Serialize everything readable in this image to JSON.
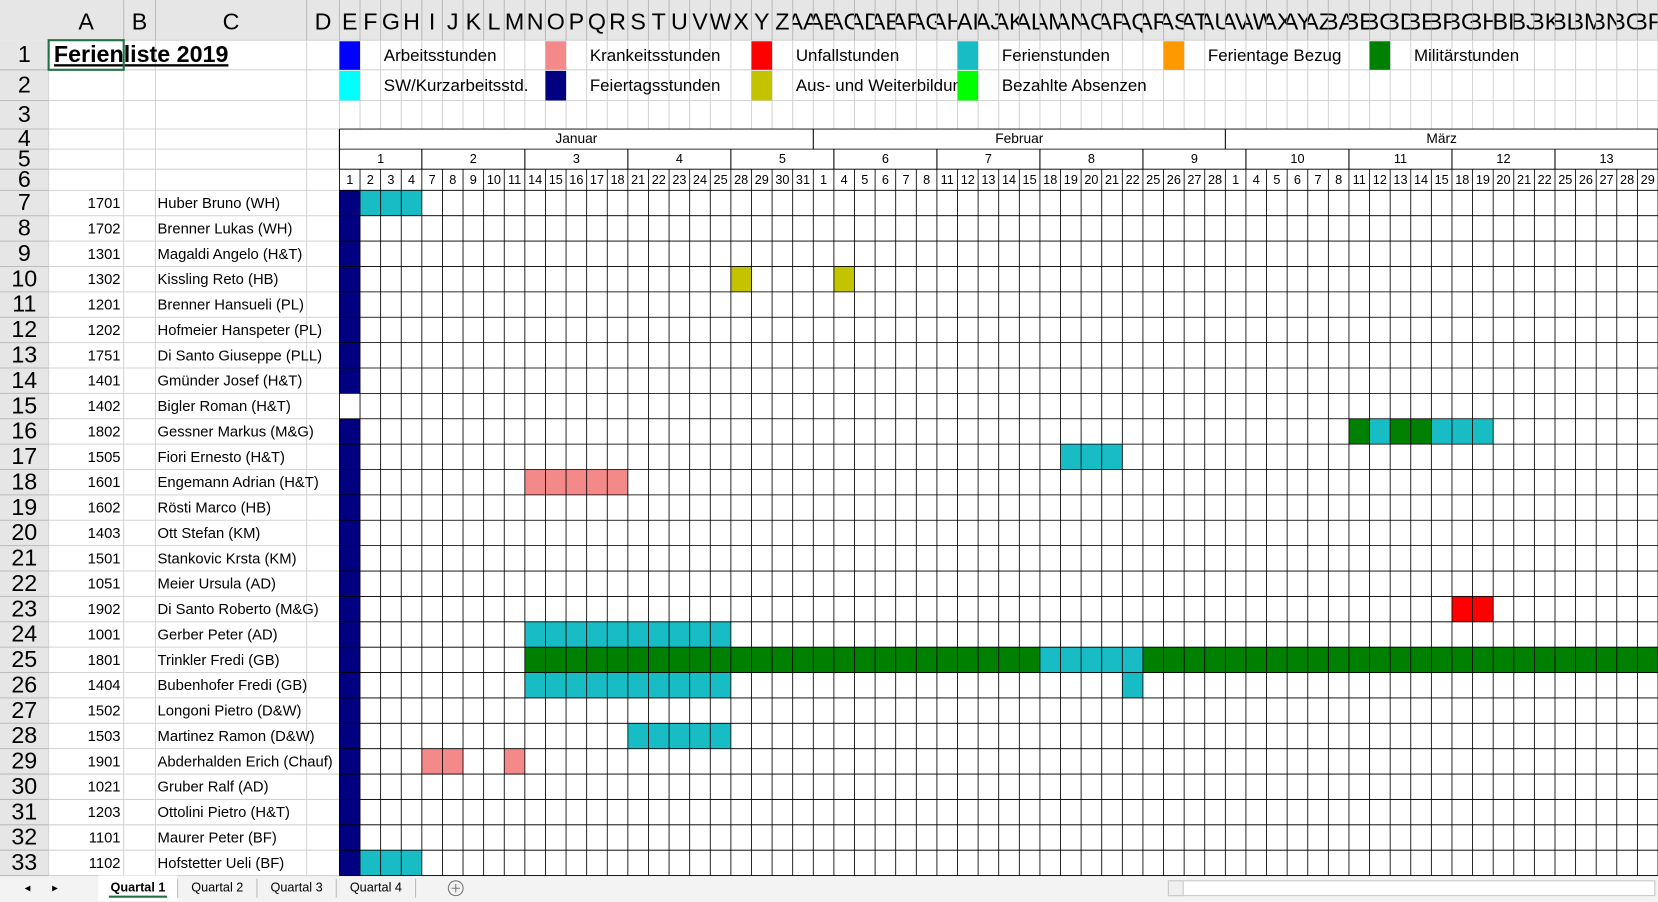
{
  "title": "Ferienliste 2019",
  "column_headers": [
    "A",
    "B",
    "C",
    "D",
    "E",
    "F",
    "G",
    "H",
    "I",
    "J",
    "K",
    "L",
    "M",
    "N",
    "O",
    "P",
    "Q",
    "R",
    "S",
    "T",
    "U",
    "V",
    "W",
    "X",
    "Y",
    "Z",
    "AA",
    "AB",
    "AC",
    "AD",
    "AE",
    "AF",
    "AG",
    "AH",
    "AI",
    "AJ",
    "AK",
    "AL",
    "AM",
    "AN",
    "AO",
    "AP",
    "AQ",
    "AR",
    "AS",
    "AT",
    "AU",
    "AV",
    "AW",
    "AX",
    "AY",
    "AZ",
    "BA",
    "BB",
    "BC",
    "BD",
    "BE",
    "BF",
    "BG",
    "BH",
    "BI",
    "BJ",
    "BK",
    "BL",
    "BM",
    "BN",
    "BO",
    "BP"
  ],
  "row_numbers": [
    1,
    2,
    3,
    4,
    5,
    6,
    7,
    8,
    9,
    10,
    11,
    12,
    13,
    14,
    15,
    16,
    17,
    18,
    19,
    20,
    21,
    22,
    23,
    24,
    25,
    26,
    27,
    28,
    29,
    30,
    31,
    32,
    33
  ],
  "legend": [
    {
      "label": "Arbeitsstunden",
      "color": "#0000ff"
    },
    {
      "label": "Krankeitsstunden",
      "color": "#f4898a"
    },
    {
      "label": "Unfallstunden",
      "color": "#ff0000"
    },
    {
      "label": "Ferienstunden",
      "color": "#17bcc4"
    },
    {
      "label": "Ferientage Bezug",
      "color": "#ff9900"
    },
    {
      "label": "Militärstunden",
      "color": "#008000"
    },
    {
      "label": "SW/Kurzarbeitsstd.",
      "color": "#00ffff"
    },
    {
      "label": "Feiertagsstunden",
      "color": "#000080"
    },
    {
      "label": "Aus- und Weiterbildung",
      "color": "#c3c300"
    },
    {
      "label": "Bezahlte Absenzen",
      "color": "#00ff00"
    }
  ],
  "months": [
    {
      "label": "Januar",
      "days": [
        1,
        2,
        3,
        4,
        7,
        8,
        9,
        10,
        11,
        14,
        15,
        16,
        17,
        18,
        21,
        22,
        23,
        24,
        25,
        28,
        29,
        30,
        31
      ]
    },
    {
      "label": "Februar",
      "days": [
        1,
        4,
        5,
        6,
        7,
        8,
        11,
        12,
        13,
        14,
        15,
        18,
        19,
        20,
        21,
        22,
        25,
        26,
        27,
        28
      ]
    },
    {
      "label": "März",
      "days": [
        1,
        4,
        5,
        6,
        7,
        8,
        11,
        12,
        13,
        14,
        15,
        18,
        19,
        20,
        21,
        22,
        25,
        26,
        27,
        28,
        29
      ]
    }
  ],
  "weeks": [
    1,
    2,
    3,
    4,
    5,
    6,
    7,
    8,
    9,
    10,
    11,
    12,
    13
  ],
  "employees": [
    {
      "id": 1701,
      "name": "Huber Bruno (WH)",
      "absences": [
        {
          "type": 7,
          "from": 0,
          "to": 0
        },
        {
          "type": 3,
          "from": 1,
          "to": 3
        }
      ]
    },
    {
      "id": 1702,
      "name": "Brenner Lukas (WH)",
      "absences": [
        {
          "type": 7,
          "from": 0,
          "to": 0
        }
      ]
    },
    {
      "id": 1301,
      "name": "Magaldi Angelo (H&T)",
      "absences": [
        {
          "type": 7,
          "from": 0,
          "to": 0
        }
      ]
    },
    {
      "id": 1302,
      "name": "Kissling Reto (HB)",
      "absences": [
        {
          "type": 7,
          "from": 0,
          "to": 0
        },
        {
          "type": 8,
          "from": 19,
          "to": 19
        },
        {
          "type": 8,
          "from": 24,
          "to": 24
        }
      ]
    },
    {
      "id": 1201,
      "name": "Brenner Hansueli (PL)",
      "absences": [
        {
          "type": 7,
          "from": 0,
          "to": 0
        }
      ]
    },
    {
      "id": 1202,
      "name": "Hofmeier Hanspeter (PL)",
      "absences": [
        {
          "type": 7,
          "from": 0,
          "to": 0
        }
      ]
    },
    {
      "id": 1751,
      "name": "Di Santo Giuseppe (PLL)",
      "absences": [
        {
          "type": 7,
          "from": 0,
          "to": 0
        }
      ]
    },
    {
      "id": 1401,
      "name": "Gmünder Josef (H&T)",
      "absences": [
        {
          "type": 7,
          "from": 0,
          "to": 0
        }
      ]
    },
    {
      "id": 1402,
      "name": "Bigler Roman (H&T)",
      "absences": []
    },
    {
      "id": 1802,
      "name": "Gessner Markus (M&G)",
      "absences": [
        {
          "type": 7,
          "from": 0,
          "to": 0
        },
        {
          "type": 5,
          "from": 49,
          "to": 49
        },
        {
          "type": 3,
          "from": 50,
          "to": 50
        },
        {
          "type": 5,
          "from": 51,
          "to": 52
        },
        {
          "type": 3,
          "from": 53,
          "to": 55
        }
      ]
    },
    {
      "id": 1505,
      "name": "Fiori Ernesto (H&T)",
      "absences": [
        {
          "type": 7,
          "from": 0,
          "to": 0
        },
        {
          "type": 3,
          "from": 35,
          "to": 37
        }
      ]
    },
    {
      "id": 1601,
      "name": "Engemann Adrian (H&T)",
      "absences": [
        {
          "type": 7,
          "from": 0,
          "to": 0
        },
        {
          "type": 1,
          "from": 9,
          "to": 13
        }
      ]
    },
    {
      "id": 1602,
      "name": "Rösti Marco (HB)",
      "absences": [
        {
          "type": 7,
          "from": 0,
          "to": 0
        }
      ]
    },
    {
      "id": 1403,
      "name": "Ott Stefan (KM)",
      "absences": [
        {
          "type": 7,
          "from": 0,
          "to": 0
        }
      ]
    },
    {
      "id": 1501,
      "name": "Stankovic Krsta (KM)",
      "absences": [
        {
          "type": 7,
          "from": 0,
          "to": 0
        }
      ]
    },
    {
      "id": 1051,
      "name": "Meier Ursula (AD)",
      "absences": [
        {
          "type": 7,
          "from": 0,
          "to": 0
        }
      ]
    },
    {
      "id": 1902,
      "name": "Di Santo Roberto (M&G)",
      "absences": [
        {
          "type": 7,
          "from": 0,
          "to": 0
        },
        {
          "type": 2,
          "from": 54,
          "to": 55
        }
      ]
    },
    {
      "id": 1001,
      "name": "Gerber Peter (AD)",
      "absences": [
        {
          "type": 7,
          "from": 0,
          "to": 0
        },
        {
          "type": 3,
          "from": 9,
          "to": 18
        }
      ]
    },
    {
      "id": 1801,
      "name": "Trinkler Fredi (GB)",
      "absences": [
        {
          "type": 7,
          "from": 0,
          "to": 0
        },
        {
          "type": 5,
          "from": 9,
          "to": 33
        },
        {
          "type": 3,
          "from": 34,
          "to": 38
        },
        {
          "type": 5,
          "from": 39,
          "to": 63
        }
      ]
    },
    {
      "id": 1404,
      "name": "Bubenhofer Fredi (GB)",
      "absences": [
        {
          "type": 7,
          "from": 0,
          "to": 0
        },
        {
          "type": 3,
          "from": 9,
          "to": 18
        },
        {
          "type": 3,
          "from": 38,
          "to": 38
        }
      ]
    },
    {
      "id": 1502,
      "name": "Longoni Pietro (D&W)",
      "absences": [
        {
          "type": 7,
          "from": 0,
          "to": 0
        }
      ]
    },
    {
      "id": 1503,
      "name": "Martinez Ramon (D&W)",
      "absences": [
        {
          "type": 7,
          "from": 0,
          "to": 0
        },
        {
          "type": 3,
          "from": 14,
          "to": 18
        }
      ]
    },
    {
      "id": 1901,
      "name": "Abderhalden Erich (Chauf)",
      "absences": [
        {
          "type": 7,
          "from": 0,
          "to": 0
        },
        {
          "type": 1,
          "from": 4,
          "to": 5
        },
        {
          "type": 1,
          "from": 8,
          "to": 8
        }
      ]
    },
    {
      "id": 1021,
      "name": "Gruber Ralf (AD)",
      "absences": [
        {
          "type": 7,
          "from": 0,
          "to": 0
        }
      ]
    },
    {
      "id": 1203,
      "name": "Ottolini Pietro (H&T)",
      "absences": [
        {
          "type": 7,
          "from": 0,
          "to": 0
        }
      ]
    },
    {
      "id": 1101,
      "name": "Maurer Peter (BF)",
      "absences": [
        {
          "type": 7,
          "from": 0,
          "to": 0
        }
      ]
    },
    {
      "id": 1102,
      "name": "Hofstetter Ueli (BF)",
      "absences": [
        {
          "type": 7,
          "from": 0,
          "to": 0
        },
        {
          "type": 3,
          "from": 1,
          "to": 3
        }
      ]
    }
  ],
  "sheet_tabs": [
    "Quartal 1",
    "Quartal 2",
    "Quartal 3",
    "Quartal 4"
  ],
  "active_tab": 0
}
